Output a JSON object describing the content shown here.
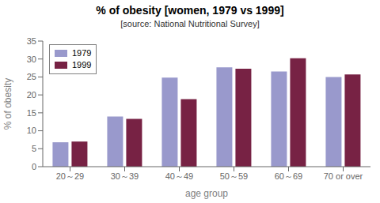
{
  "chart_data": {
    "type": "bar",
    "title": "% of obesity [women, 1979 vs 1999]",
    "subtitle": "[source: National Nutritional Survey]",
    "categories": [
      "20～29",
      "30～39",
      "40～49",
      "50～59",
      "60～69",
      "70 or over"
    ],
    "series": [
      {
        "name": "1979",
        "color": "#9999CC",
        "values": [
          6.8,
          14.0,
          24.8,
          27.7,
          26.5,
          25.0
        ]
      },
      {
        "name": "1999",
        "color": "#772244",
        "values": [
          7.0,
          13.3,
          18.8,
          27.3,
          30.2,
          25.7
        ]
      }
    ],
    "xlabel": "age group",
    "ylabel": "% of obesity",
    "ylim": [
      0,
      35
    ],
    "yticks": [
      0,
      5,
      10,
      15,
      20,
      25,
      30,
      35
    ],
    "grid": false,
    "legend": "upper left"
  }
}
